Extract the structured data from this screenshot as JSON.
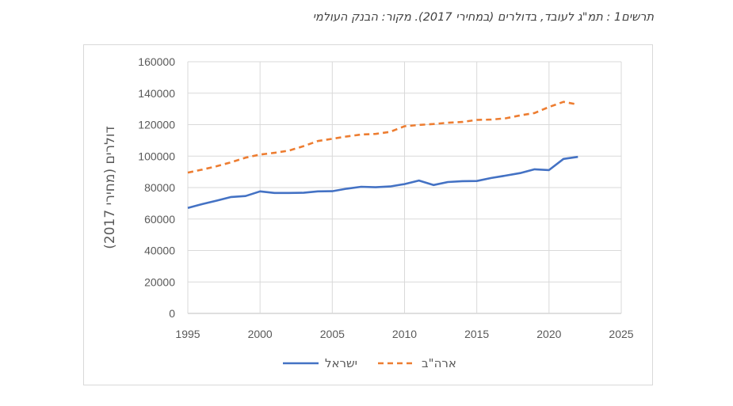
{
  "caption": "תרשים1 : תמ\"ג לעובד, בדולרים (במחירי 2017). מקור: הבנק העולמי",
  "chart_data": {
    "type": "line",
    "title": "",
    "xlabel": "",
    "ylabel": "דולרים (מחירי 2017)",
    "xlim": [
      1995,
      2025
    ],
    "ylim": [
      0,
      160000
    ],
    "xticks": [
      1995,
      2000,
      2005,
      2010,
      2015,
      2020,
      2025
    ],
    "yticks": [
      0,
      20000,
      40000,
      60000,
      80000,
      100000,
      120000,
      140000,
      160000
    ],
    "grid": "horizontal",
    "legend": "bottom",
    "x": [
      1995,
      1996,
      1997,
      1998,
      1999,
      2000,
      2001,
      2002,
      2003,
      2004,
      2005,
      2006,
      2007,
      2008,
      2009,
      2010,
      2011,
      2012,
      2013,
      2014,
      2015,
      2016,
      2017,
      2018,
      2019,
      2020,
      2021,
      2022
    ],
    "series": [
      {
        "name": "ישראל",
        "color": "#4472c4",
        "style": "solid",
        "values": [
          67000,
          69500,
          71700,
          74000,
          74600,
          77600,
          76600,
          76600,
          76700,
          77600,
          77700,
          79300,
          80500,
          80200,
          80700,
          82200,
          84500,
          81600,
          83500,
          84100,
          84200,
          86100,
          87600,
          89200,
          91600,
          91100,
          98200,
          99500
        ]
      },
      {
        "name": "ארה\"ב",
        "color": "#ed7d31",
        "style": "dashed",
        "values": [
          89500,
          91400,
          93600,
          96100,
          99000,
          101000,
          102100,
          103500,
          106300,
          109600,
          111000,
          112500,
          113700,
          114100,
          115400,
          119000,
          119800,
          120400,
          121200,
          121700,
          123000,
          123200,
          124000,
          125900,
          127400,
          131200,
          134500,
          132800
        ]
      }
    ]
  }
}
